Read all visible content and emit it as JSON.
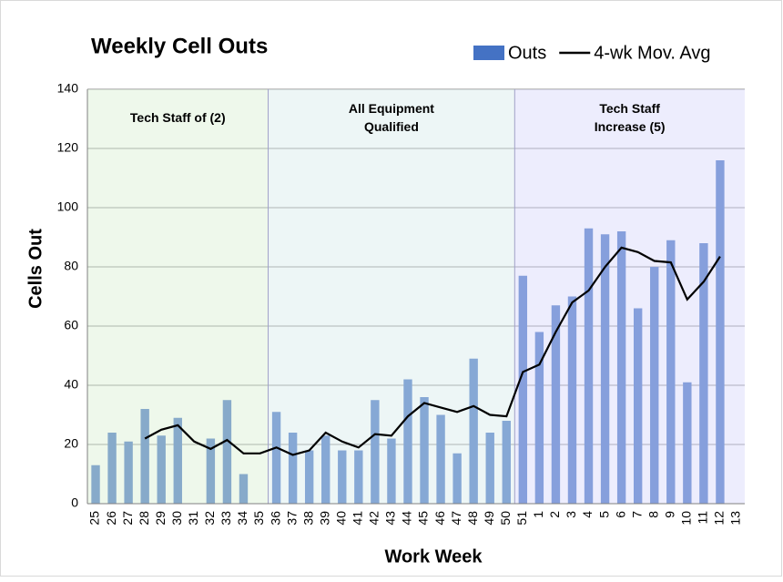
{
  "chart_data": {
    "type": "bar",
    "title": "Weekly Cell Outs",
    "x_label": "Work Week",
    "y_label": "Cells Out",
    "categories": [
      "25",
      "26",
      "27",
      "28",
      "29",
      "30",
      "31",
      "32",
      "33",
      "34",
      "35",
      "36",
      "37",
      "38",
      "39",
      "40",
      "41",
      "42",
      "43",
      "44",
      "45",
      "46",
      "47",
      "48",
      "49",
      "50",
      "51",
      "1",
      "2",
      "3",
      "4",
      "5",
      "6",
      "7",
      "8",
      "9",
      "10",
      "11",
      "12",
      "13"
    ],
    "series": [
      {
        "name": "Outs",
        "color": "#4472c4",
        "type": "bar",
        "values": [
          13,
          24,
          21,
          32,
          23,
          29,
          null,
          22,
          35,
          10,
          null,
          31,
          24,
          18,
          23,
          18,
          18,
          35,
          22,
          42,
          36,
          30,
          17,
          49,
          24,
          28,
          77,
          58,
          67,
          70,
          93,
          91,
          92,
          66,
          80,
          89,
          41,
          88,
          116,
          null
        ]
      },
      {
        "name": "4-wk Mov. Avg",
        "color": "#000000",
        "type": "line",
        "values": [
          null,
          null,
          null,
          22,
          25,
          26.5,
          21,
          18.5,
          21.5,
          17,
          17,
          19,
          16.5,
          18,
          24,
          21,
          19,
          23.5,
          23,
          29.5,
          34,
          32.5,
          31,
          33,
          30,
          29.5,
          44.5,
          47,
          58,
          68,
          72,
          80,
          86.5,
          85,
          82,
          81.5,
          69,
          75,
          83.5,
          null
        ]
      }
    ],
    "annotations": [
      {
        "text": "Tech Staff of (2)",
        "from": 0,
        "to": 10,
        "color": "#d9f0d3"
      },
      {
        "text": "All Equipment Qualified",
        "from": 11,
        "to": 25,
        "color": "#d6ecec"
      },
      {
        "text": "Tech Staff Increase (5)",
        "from": 26,
        "to": 39,
        "color": "#d6d6fb"
      }
    ],
    "ylim": [
      0,
      140
    ],
    "yticks": [
      0,
      20,
      40,
      60,
      80,
      100,
      120,
      140
    ],
    "grid": true,
    "legend": "top-right"
  }
}
